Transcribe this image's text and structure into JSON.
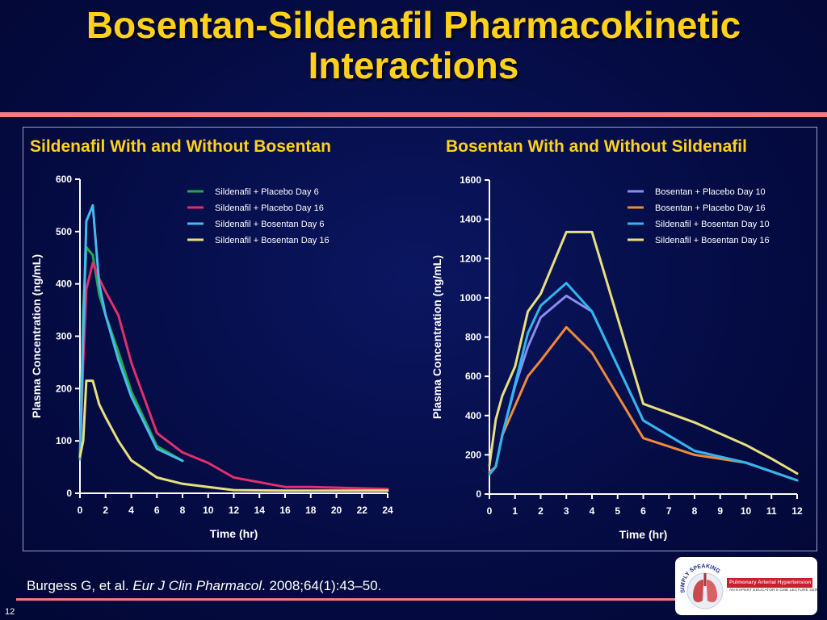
{
  "slide": {
    "title_line1": "Bosentan-Sildenafil Pharmacokinetic",
    "title_line2": "Interactions",
    "citation_authors": "Burgess G, et al. ",
    "citation_journal": "Eur J Clin Pharmacol",
    "citation_rest": ". 2008;64(1):43–50.",
    "page_number": "12",
    "logo": {
      "brand_text": "SIMPLY SPEAKING",
      "topic": "Pulmonary Arterial Hypertension",
      "tagline": "AN EXPERT EDUCATOR'S CME LECTURE SERIES"
    }
  },
  "chart_data": [
    {
      "type": "line",
      "title": "Sildenafil With and Without Bosentan",
      "xlabel": "Time (hr)",
      "ylabel": "Plasma Concentration (ng/mL)",
      "xlim": [
        0,
        24
      ],
      "ylim": [
        0,
        600
      ],
      "xticks": [
        0,
        2,
        4,
        6,
        8,
        10,
        12,
        14,
        16,
        18,
        20,
        22,
        24
      ],
      "yticks": [
        0,
        100,
        200,
        300,
        400,
        500,
        600
      ],
      "legend_position": "top-right",
      "series": [
        {
          "name": "Sildenafil + Placebo Day 6",
          "color": "#22a84a",
          "x": [
            0,
            0.25,
            0.5,
            1,
            1.5,
            2,
            3,
            4,
            6,
            8
          ],
          "y": [
            65,
            350,
            470,
            455,
            380,
            340,
            270,
            195,
            90,
            62
          ]
        },
        {
          "name": "Sildenafil + Placebo Day 16",
          "color": "#e0306c",
          "x": [
            0,
            0.25,
            0.5,
            1,
            1.5,
            2,
            3,
            4,
            6,
            8,
            10,
            12,
            16,
            18,
            24
          ],
          "y": [
            65,
            250,
            390,
            440,
            410,
            385,
            340,
            250,
            115,
            78,
            58,
            30,
            12,
            12,
            8
          ]
        },
        {
          "name": "Sildenafil + Bosentan Day 6",
          "color": "#49b8ee",
          "x": [
            0,
            0.25,
            0.5,
            1,
            1.5,
            2,
            3,
            4,
            6,
            8
          ],
          "y": [
            65,
            300,
            520,
            550,
            400,
            340,
            255,
            185,
            85,
            62
          ]
        },
        {
          "name": "Sildenafil + Bosentan Day 16",
          "color": "#e8e07e",
          "x": [
            0,
            0.25,
            0.5,
            1,
            1.5,
            2,
            3,
            4,
            6,
            8,
            10,
            12,
            16,
            24
          ],
          "y": [
            70,
            100,
            215,
            215,
            170,
            145,
            100,
            63,
            30,
            18,
            12,
            6,
            5,
            5
          ]
        }
      ]
    },
    {
      "type": "line",
      "title": "Bosentan With and Without Sildenafil",
      "xlabel": "Time (hr)",
      "ylabel": "Plasma Concentration (ng/mL)",
      "xlim": [
        0,
        12
      ],
      "ylim": [
        0,
        1600
      ],
      "xticks": [
        0,
        1,
        2,
        3,
        4,
        5,
        6,
        7,
        8,
        9,
        10,
        11,
        12
      ],
      "yticks": [
        0,
        200,
        400,
        600,
        800,
        1000,
        1200,
        1400,
        1600
      ],
      "legend_position": "top-right",
      "series": [
        {
          "name": "Bosentan + Placebo Day 10",
          "color": "#8c8cf0",
          "x": [
            0,
            0.25,
            0.5,
            1,
            1.5,
            2,
            3,
            4,
            6,
            8,
            10,
            12
          ],
          "y": [
            100,
            140,
            300,
            550,
            750,
            900,
            1010,
            930,
            375,
            220,
            160,
            70
          ]
        },
        {
          "name": "Bosentan + Placebo Day 16",
          "color": "#f08a3a",
          "x": [
            0,
            0.25,
            0.5,
            1,
            1.5,
            2,
            3,
            4,
            6,
            8,
            10,
            12
          ],
          "y": [
            110,
            140,
            300,
            450,
            600,
            680,
            850,
            720,
            285,
            200,
            160,
            70
          ]
        },
        {
          "name": "Sildenafil + Bosentan Day 10",
          "color": "#2fb6ee",
          "x": [
            0,
            0.25,
            0.5,
            1,
            1.5,
            2,
            3,
            4,
            6,
            8,
            10,
            12
          ],
          "y": [
            100,
            140,
            300,
            560,
            820,
            960,
            1075,
            930,
            375,
            220,
            160,
            70
          ]
        },
        {
          "name": "Sildenafil + Bosentan Day 16",
          "color": "#e8e07e",
          "x": [
            0,
            0.25,
            0.5,
            1,
            1.5,
            2,
            3,
            4,
            6,
            8,
            10,
            11,
            12
          ],
          "y": [
            145,
            380,
            500,
            650,
            930,
            1020,
            1335,
            1335,
            460,
            365,
            250,
            180,
            105
          ]
        }
      ]
    }
  ]
}
